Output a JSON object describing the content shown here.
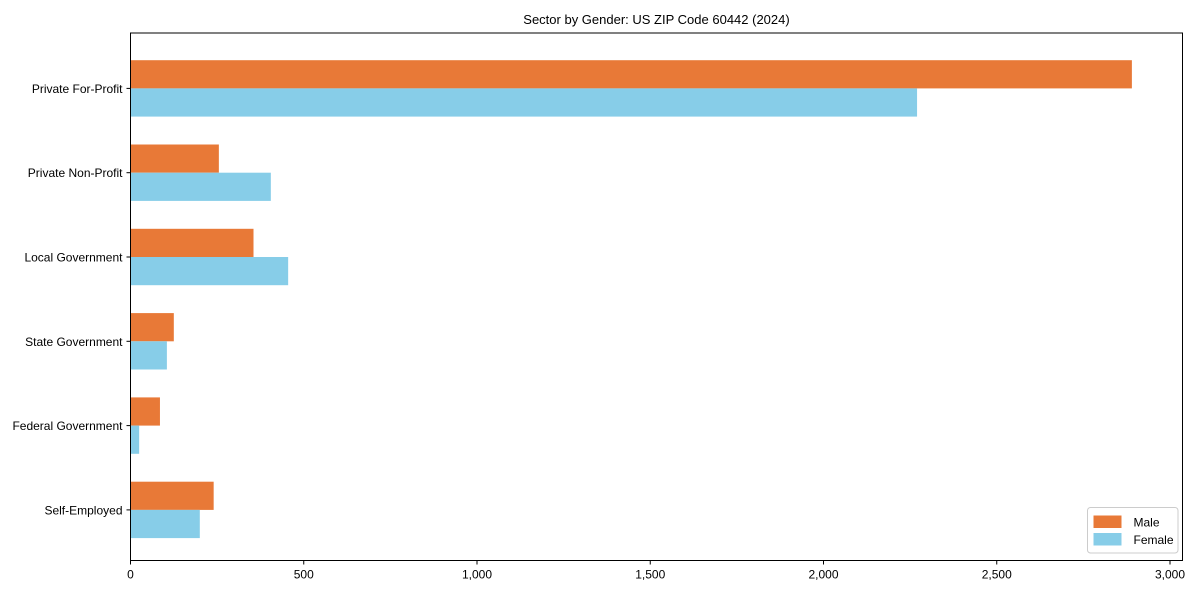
{
  "title": "Sector by Gender: US ZIP Code 60442 (2024)",
  "chart_data": {
    "type": "bar",
    "orientation": "horizontal",
    "title": "Sector by Gender: US ZIP Code 60442 (2024)",
    "xlabel": "",
    "ylabel": "",
    "categories": [
      "Private For-Profit",
      "Private Non-Profit",
      "Local Government",
      "State Government",
      "Federal Government",
      "Self-Employed"
    ],
    "series": [
      {
        "name": "Male",
        "color": "#e87937",
        "values": [
          2890,
          255,
          355,
          125,
          85,
          240
        ]
      },
      {
        "name": "Female",
        "color": "#87cde8",
        "values": [
          2270,
          405,
          455,
          105,
          25,
          200
        ]
      }
    ],
    "xlim": [
      0,
      3000
    ],
    "xticks": [
      0,
      500,
      1000,
      1500,
      2000,
      2500,
      3000
    ],
    "xtick_labels": [
      "0",
      "500",
      "1,000",
      "1,500",
      "2,000",
      "2,500",
      "3,000"
    ],
    "grid": false,
    "legend_position": "lower right",
    "colors": {
      "axis": "#000000",
      "legend_border": "#cccccc",
      "background": "#ffffff"
    }
  }
}
